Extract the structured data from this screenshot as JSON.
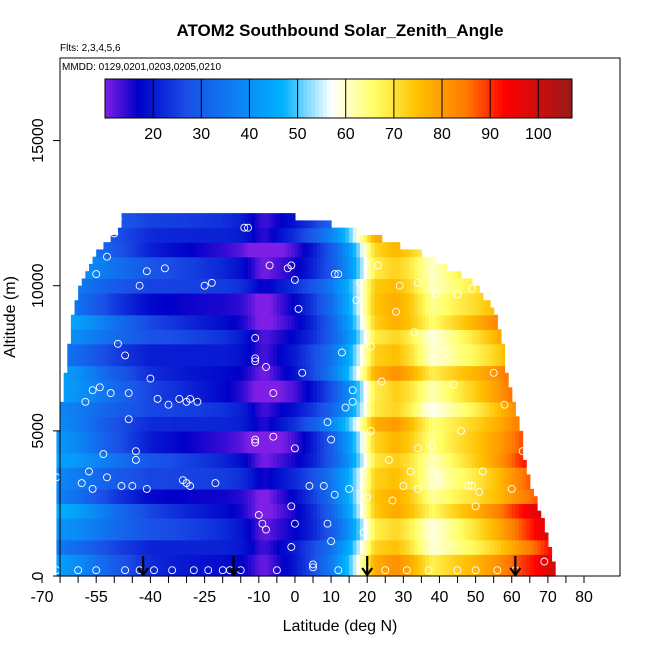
{
  "chart_data": {
    "type": "heatmap",
    "title": "ATOM2 Southbound Solar_Zenith_Angle",
    "flights_label": "Flts: 2,3,4,5,6",
    "dates_label": "MMDD: 0129,0201,0203,0205,0210",
    "xlabel": "Latitude (deg N)",
    "ylabel": "Altitude (m)",
    "xlim": [
      -70,
      80
    ],
    "ylim": [
      0,
      17500
    ],
    "x_ticks": [
      -70,
      -55,
      -40,
      -25,
      -10,
      0,
      10,
      20,
      30,
      40,
      50,
      60,
      70,
      80
    ],
    "x_minor_ticks": [
      -65,
      -60,
      -50,
      -45,
      -35,
      -30,
      -20,
      -15,
      -5,
      5,
      15,
      25,
      35,
      45,
      55,
      65,
      75
    ],
    "y_ticks": [
      0,
      5000,
      10000,
      15000
    ],
    "colorbar": {
      "range": [
        10,
        107
      ],
      "ticks": [
        20,
        30,
        40,
        50,
        60,
        70,
        80,
        90,
        100
      ],
      "colors": [
        "#7f1fe6",
        "#0000c8",
        "#1a4ee6",
        "#00b2ff",
        "#ffffff",
        "#ffff66",
        "#ffc000",
        "#ff7a00",
        "#ff0000",
        "#9a1a1a"
      ],
      "stops": [
        10,
        17,
        27,
        47,
        57,
        66,
        75,
        85,
        93,
        107
      ]
    },
    "grid": false,
    "legend": "colorbar top",
    "sza_vs_latitude": {
      "lat": [
        -68,
        -60,
        -55,
        -50,
        -45,
        -40,
        -35,
        -30,
        -25,
        -20,
        -15,
        -12,
        -10,
        -8,
        -5,
        0,
        5,
        10,
        15,
        18,
        22,
        28,
        32,
        38,
        45,
        50,
        56,
        62,
        67,
        71
      ],
      "sza": [
        42,
        38,
        34,
        30,
        27,
        24,
        23,
        22,
        21,
        20,
        18,
        15,
        12,
        11,
        14,
        18,
        24,
        32,
        44,
        55,
        72,
        76,
        72,
        62,
        68,
        72,
        78,
        86,
        92,
        98
      ]
    },
    "coverage": {
      "alt": [
        0,
        1000,
        2000,
        3000,
        4000,
        5000,
        6000,
        7000,
        8000,
        9000,
        10000,
        11000,
        12000,
        12500
      ],
      "lat_min": [
        -66,
        -66,
        -66,
        -66,
        -66,
        -66,
        -65,
        -64,
        -63,
        -62,
        -60,
        -56,
        -48,
        -48
      ],
      "lat_max": [
        72,
        70,
        68,
        65,
        63,
        62,
        60,
        58,
        57,
        55,
        50,
        37,
        15,
        -5
      ]
    },
    "sampled_points": [
      [
        -66,
        200
      ],
      [
        -66,
        3400
      ],
      [
        -66,
        5800
      ],
      [
        -64,
        9800
      ],
      [
        -60,
        200
      ],
      [
        -59,
        3200
      ],
      [
        -58,
        6000
      ],
      [
        -57,
        3600
      ],
      [
        -56,
        6400
      ],
      [
        -56,
        3000
      ],
      [
        -55,
        200
      ],
      [
        -55,
        10400
      ],
      [
        -54,
        6500
      ],
      [
        -53,
        4200
      ],
      [
        -52,
        3400
      ],
      [
        -52,
        11000
      ],
      [
        -51,
        6300
      ],
      [
        -50,
        11800
      ],
      [
        -49,
        12300
      ],
      [
        -49,
        8000
      ],
      [
        -48,
        3100
      ],
      [
        -47,
        200
      ],
      [
        -47,
        7600
      ],
      [
        -46,
        5400
      ],
      [
        -46,
        6300
      ],
      [
        -45,
        3100
      ],
      [
        -44,
        4000
      ],
      [
        -44,
        4300
      ],
      [
        -43,
        200
      ],
      [
        -43,
        10000
      ],
      [
        -41,
        10500
      ],
      [
        -41,
        3000
      ],
      [
        -40,
        6800
      ],
      [
        -39,
        200
      ],
      [
        -38,
        6100
      ],
      [
        -36,
        10600
      ],
      [
        -35,
        5900
      ],
      [
        -34,
        200
      ],
      [
        -32,
        6100
      ],
      [
        -31,
        3300
      ],
      [
        -30,
        6000
      ],
      [
        -30,
        3200
      ],
      [
        -29,
        3100
      ],
      [
        -29,
        6100
      ],
      [
        -28,
        200
      ],
      [
        -27,
        6000
      ],
      [
        -25,
        10000
      ],
      [
        -24,
        200
      ],
      [
        -23,
        10100
      ],
      [
        -22,
        3200
      ],
      [
        -20,
        200
      ],
      [
        -18,
        200
      ],
      [
        -15,
        200
      ],
      [
        -14,
        12000
      ],
      [
        -13,
        12000
      ],
      [
        -11,
        8200
      ],
      [
        -11,
        7500
      ],
      [
        -11,
        7400
      ],
      [
        -11,
        4600
      ],
      [
        -11,
        4700
      ],
      [
        -10,
        2100
      ],
      [
        -9,
        1800
      ],
      [
        -8,
        7200
      ],
      [
        -8,
        1600
      ],
      [
        -7,
        10700
      ],
      [
        -6,
        6300
      ],
      [
        -6,
        4800
      ],
      [
        -5,
        200
      ],
      [
        -2,
        10600
      ],
      [
        -1,
        10700
      ],
      [
        -1,
        2400
      ],
      [
        -1,
        1000
      ],
      [
        0,
        10200
      ],
      [
        0,
        4400
      ],
      [
        0,
        1800
      ],
      [
        1,
        9200
      ],
      [
        2,
        7000
      ],
      [
        4,
        3100
      ],
      [
        5,
        300
      ],
      [
        5,
        400
      ],
      [
        8,
        3100
      ],
      [
        9,
        1800
      ],
      [
        9,
        5300
      ],
      [
        10,
        4700
      ],
      [
        10,
        1200
      ],
      [
        11,
        10400
      ],
      [
        11,
        2800
      ],
      [
        12,
        10400
      ],
      [
        12,
        200
      ],
      [
        13,
        7700
      ],
      [
        14,
        5800
      ],
      [
        15,
        3000
      ],
      [
        16,
        6400
      ],
      [
        16,
        6000
      ],
      [
        17,
        9500
      ],
      [
        18,
        10100
      ],
      [
        19,
        3600
      ],
      [
        19,
        1500
      ],
      [
        20,
        200
      ],
      [
        20,
        2700
      ],
      [
        21,
        7900
      ],
      [
        21,
        5000
      ],
      [
        23,
        10700
      ],
      [
        24,
        6700
      ],
      [
        25,
        200
      ],
      [
        26,
        4000
      ],
      [
        27,
        2600
      ],
      [
        28,
        9100
      ],
      [
        29,
        10000
      ],
      [
        30,
        3100
      ],
      [
        31,
        200
      ],
      [
        32,
        3600
      ],
      [
        33,
        8400
      ],
      [
        34,
        10100
      ],
      [
        34,
        3000
      ],
      [
        34,
        4400
      ],
      [
        36,
        5800
      ],
      [
        37,
        200
      ],
      [
        38,
        4500
      ],
      [
        39,
        9700
      ],
      [
        40,
        3400
      ],
      [
        42,
        7700
      ],
      [
        44,
        6600
      ],
      [
        45,
        200
      ],
      [
        45,
        9700
      ],
      [
        46,
        5000
      ],
      [
        48,
        3100
      ],
      [
        49,
        3100
      ],
      [
        49,
        9900
      ],
      [
        50,
        2400
      ],
      [
        50,
        200
      ],
      [
        51,
        2900
      ],
      [
        52,
        3600
      ],
      [
        55,
        7000
      ],
      [
        56,
        200
      ],
      [
        58,
        5900
      ],
      [
        60,
        3000
      ],
      [
        61,
        200
      ],
      [
        63,
        4300
      ],
      [
        69,
        500
      ]
    ],
    "arrow_latitudes": [
      -42,
      -17,
      20,
      61
    ]
  }
}
